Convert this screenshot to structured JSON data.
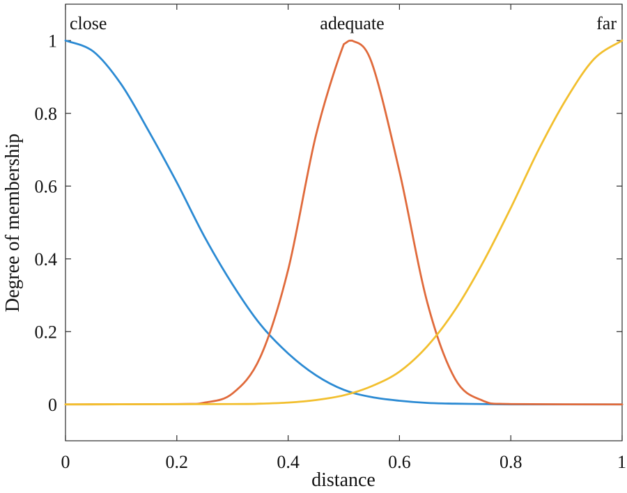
{
  "chart_data": {
    "type": "line",
    "title": "",
    "xlabel": "distance",
    "ylabel": "Degree of membership",
    "xlim": [
      0,
      1
    ],
    "ylim": [
      -0.1,
      1.1
    ],
    "x_ticks": [
      0,
      0.2,
      0.4,
      0.6,
      0.8,
      1
    ],
    "x_tick_labels": [
      "0",
      "0.2",
      "0.4",
      "0.6",
      "0.8",
      "1"
    ],
    "y_ticks": [
      0,
      0.2,
      0.4,
      0.6,
      0.8,
      1
    ],
    "y_tick_labels": [
      "0",
      "0.2",
      "0.4",
      "0.6",
      "0.8",
      "1"
    ],
    "grid": false,
    "legend": "none",
    "series": [
      {
        "name": "close",
        "color": "#2b8ad3",
        "label_position": "top-left",
        "x": [
          0,
          0.05,
          0.1,
          0.15,
          0.2,
          0.25,
          0.3,
          0.35,
          0.4,
          0.45,
          0.5,
          0.55,
          0.6,
          0.65,
          0.7,
          0.75,
          0.8,
          0.85,
          0.9,
          0.95,
          1
        ],
        "y": [
          1.0,
          0.97,
          0.88,
          0.75,
          0.61,
          0.46,
          0.33,
          0.22,
          0.14,
          0.08,
          0.04,
          0.02,
          0.01,
          0.004,
          0.002,
          0.001,
          0,
          0,
          0,
          0,
          0
        ]
      },
      {
        "name": "adequate",
        "color": "#e06a3b",
        "label_position": "top-center",
        "x": [
          0,
          0.2,
          0.25,
          0.3,
          0.35,
          0.4,
          0.45,
          0.5,
          0.515,
          0.55,
          0.6,
          0.65,
          0.7,
          0.75,
          0.8,
          1
        ],
        "y": [
          0,
          0.001,
          0.005,
          0.03,
          0.13,
          0.37,
          0.74,
          0.99,
          1.0,
          0.94,
          0.64,
          0.28,
          0.07,
          0.01,
          0.001,
          0
        ]
      },
      {
        "name": "far",
        "color": "#f2bf2e",
        "label_position": "top-right",
        "x": [
          0,
          0.3,
          0.35,
          0.4,
          0.45,
          0.5,
          0.55,
          0.6,
          0.65,
          0.7,
          0.75,
          0.8,
          0.85,
          0.9,
          0.95,
          1
        ],
        "y": [
          0,
          0.001,
          0.002,
          0.005,
          0.012,
          0.025,
          0.05,
          0.09,
          0.16,
          0.26,
          0.39,
          0.54,
          0.7,
          0.84,
          0.95,
          1.0
        ]
      }
    ]
  }
}
